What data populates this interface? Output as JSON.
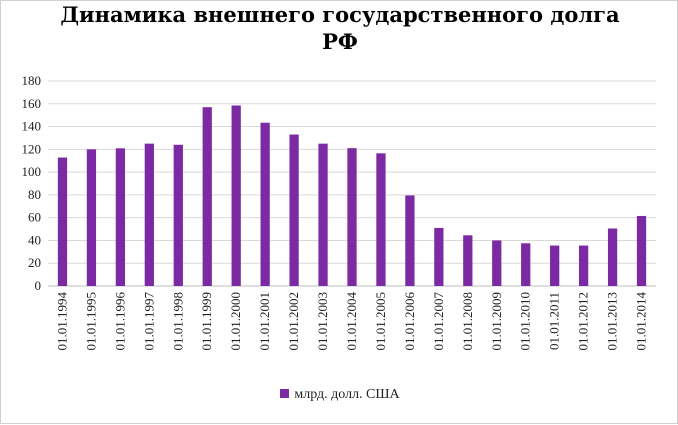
{
  "colors": {
    "bar": "#7b2aa3",
    "grid": "#d9d9d9",
    "axis": "#bfbfbf"
  },
  "chart_data": {
    "type": "bar",
    "title": "Динамика  внешнего государственного  долга\nРФ",
    "categories": [
      "01.01.1994",
      "01.01.1995",
      "01.01.1996",
      "01.01.1997",
      "01.01.1998",
      "01.01.1999",
      "01.01.2000",
      "01.01.2001",
      "01.01.2002",
      "01.01.2003",
      "01.01.2004",
      "01.01.2005",
      "01.01.2006",
      "01.01.2007",
      "01.01.2008",
      "01.01.2009",
      "01.01.2010",
      "01.01.2011",
      "01.01.2012",
      "01.01.2013",
      "01.01.2014"
    ],
    "series": [
      {
        "name": "млрд. долл. США",
        "values": [
          112.8,
          120.0,
          120.9,
          125.0,
          124.0,
          157.0,
          158.5,
          143.4,
          133.0,
          125.0,
          121.0,
          116.5,
          79.5,
          51.0,
          44.5,
          40.0,
          37.5,
          35.5,
          35.5,
          50.5,
          61.5
        ]
      }
    ],
    "ylim": [
      0,
      180
    ],
    "yticks": [
      0,
      20,
      40,
      60,
      80,
      100,
      120,
      140,
      160,
      180
    ],
    "grid": true,
    "legend": "bottom"
  }
}
